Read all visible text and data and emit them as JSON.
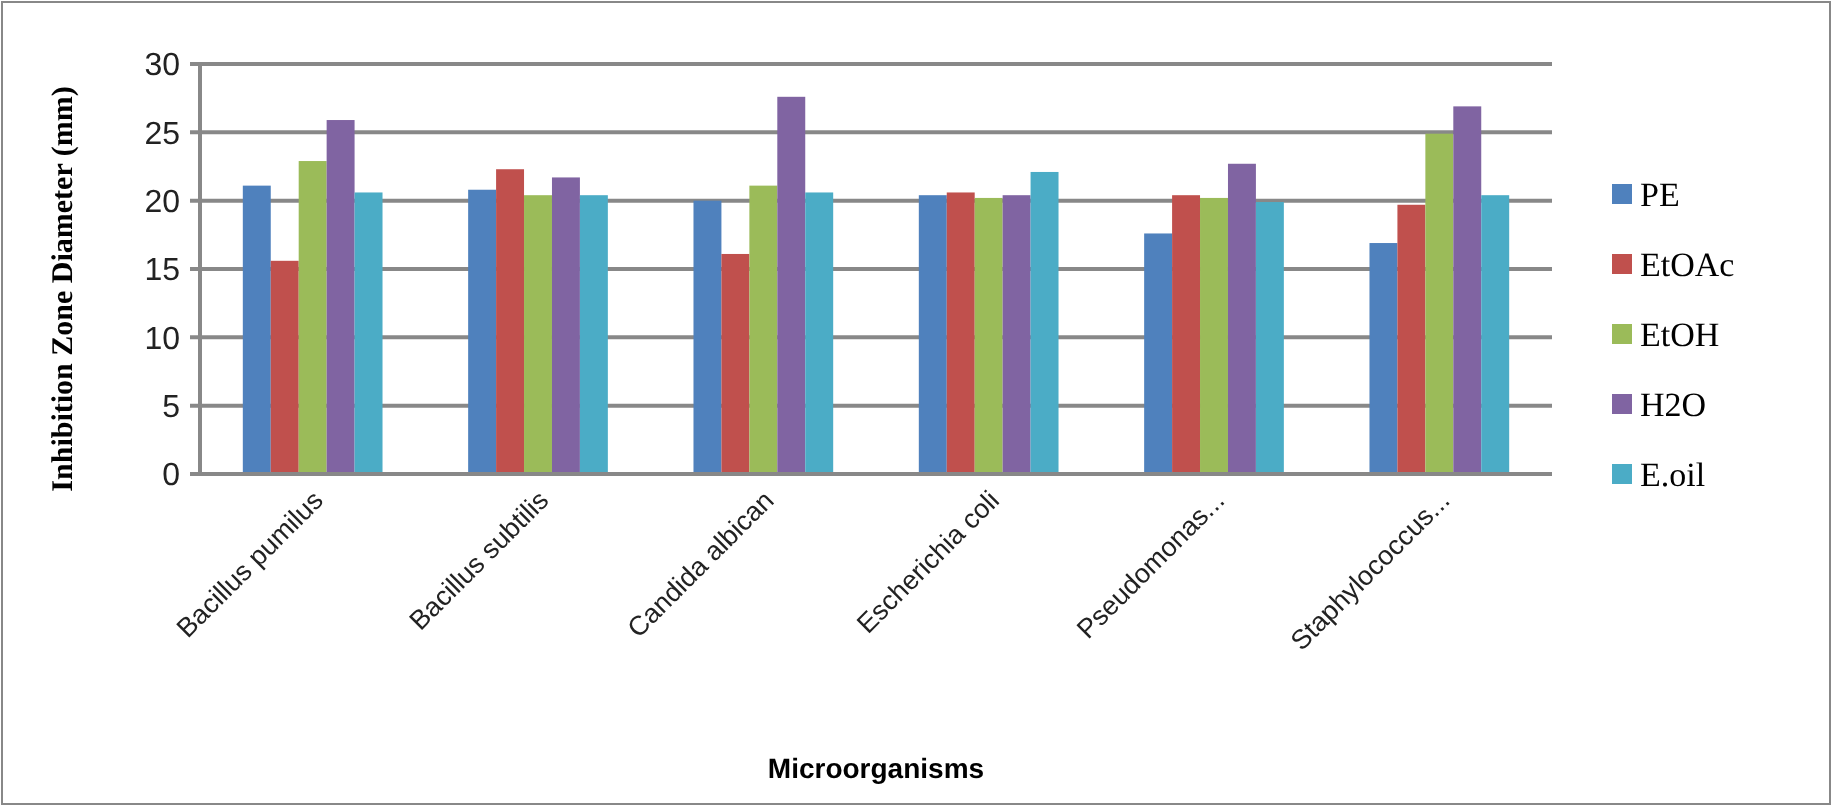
{
  "chart_data": {
    "type": "bar",
    "xlabel": "Microorganisms",
    "ylabel": "Inhibition Zone Diameter (mm)",
    "categories": [
      "Bacillus pumilus",
      "Bacillus subtilis",
      "Candida albican",
      "Escherichia coli",
      "Pseudomonas...",
      "Staphylococcus..."
    ],
    "series": [
      {
        "name": "PE",
        "color": "#4f81bd",
        "values": [
          21.1,
          20.8,
          20.0,
          20.4,
          17.6,
          16.9
        ]
      },
      {
        "name": "EtOAc",
        "color": "#c0504d",
        "values": [
          15.6,
          22.3,
          16.1,
          20.6,
          20.4,
          19.7
        ]
      },
      {
        "name": "EtOH",
        "color": "#9bbb59",
        "values": [
          22.9,
          20.4,
          21.1,
          20.2,
          20.2,
          24.9
        ]
      },
      {
        "name": "H2O",
        "color": "#8064a2",
        "values": [
          25.9,
          21.7,
          27.6,
          20.4,
          22.7,
          26.9
        ]
      },
      {
        "name": "E.oil",
        "color": "#4bacc6",
        "values": [
          20.6,
          20.4,
          20.6,
          22.1,
          19.9,
          20.4
        ]
      }
    ],
    "ylim": [
      0,
      30
    ],
    "yticks": [
      0,
      5,
      10,
      15,
      20,
      25,
      30
    ],
    "grid": "y",
    "legend": "right"
  }
}
